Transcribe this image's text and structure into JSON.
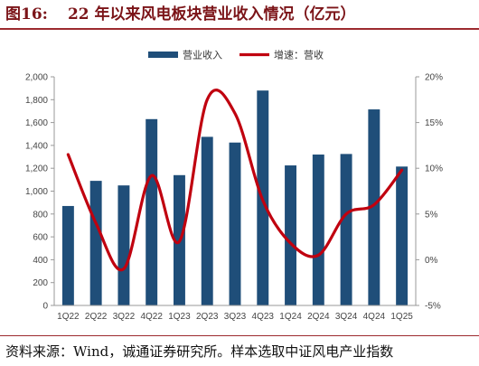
{
  "figure": {
    "label": "图16:",
    "title": "22 年以来风电板块营业收入情况（亿元）",
    "source": "资料来源：Wind，诚通证券研究所。样本选取中证风电产业指数"
  },
  "colors": {
    "bar": "#1f4e79",
    "line": "#c0000f",
    "title": "#7b1418",
    "rule": "#9c2a2e"
  },
  "chart_data": {
    "type": "bar",
    "categories": [
      "1Q22",
      "2Q22",
      "3Q22",
      "4Q22",
      "1Q23",
      "2Q23",
      "3Q23",
      "4Q23",
      "1Q24",
      "2Q24",
      "3Q24",
      "4Q24",
      "1Q25"
    ],
    "series": [
      {
        "name": "营业收入",
        "type": "bar",
        "axis": "left",
        "values": [
          870,
          1090,
          1050,
          1630,
          1140,
          1475,
          1425,
          1880,
          1225,
          1320,
          1325,
          1715,
          1215
        ]
      },
      {
        "name": "增速：营收",
        "type": "line",
        "axis": "right",
        "smooth": true,
        "values": [
          11.5,
          4.0,
          -1.0,
          9.2,
          2.0,
          17.5,
          16.0,
          6.5,
          1.8,
          0.5,
          5.0,
          6.0,
          9.8
        ]
      }
    ],
    "y_left": {
      "min": 0,
      "max": 2000,
      "step": 200,
      "tick_labels": [
        "0",
        "200",
        "400",
        "600",
        "800",
        "1,000",
        "1,200",
        "1,400",
        "1,600",
        "1,800",
        "2,000"
      ]
    },
    "y_right": {
      "min": -5,
      "max": 20,
      "step": 5,
      "tick_labels": [
        "-5%",
        "0%",
        "5%",
        "10%",
        "15%",
        "20%"
      ]
    },
    "legend": {
      "position": "top-center",
      "entries": [
        "营业收入",
        "增速：营收"
      ]
    },
    "grid": false
  }
}
